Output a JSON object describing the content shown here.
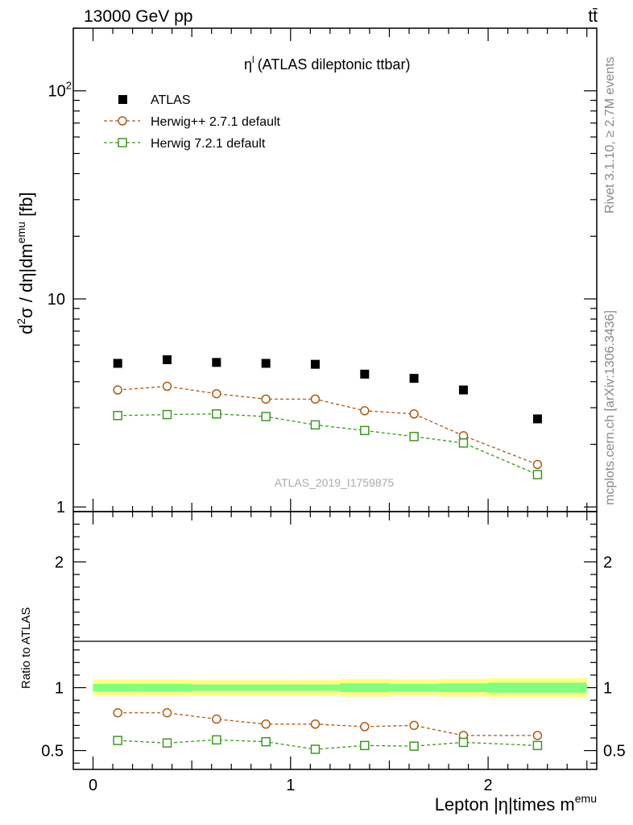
{
  "header": {
    "energy_label": "13000 GeV pp",
    "process_label": "tt̄"
  },
  "side_labels": {
    "rivet": "Rivet 3.1.10, ≥ 2.7M events",
    "mcplots": "mcplots.cern.ch [arXiv:1306.3436]"
  },
  "watermark": "ATLAS_2019_I1759875",
  "main_title": {
    "symbol": "η",
    "superscript": "l",
    "text": "(ATLAS dileptonic ttbar)"
  },
  "y_title": {
    "part1": "d",
    "part1_sup": "2",
    "part2": "σ / dη|dm",
    "part2_sup": "emu",
    "part3": " [fb]"
  },
  "ratio_ylabel": "Ratio to ATLAS",
  "x_title": {
    "text": "Lepton |η|times m",
    "sup": "emu"
  },
  "colors": {
    "atlas": "#000000",
    "herwigpp": "#b05a10",
    "herwig7": "#3a9a1e",
    "band_outer": "#ffff80",
    "band_inner": "#80ff80"
  },
  "chart_data": [
    {
      "type": "scatter",
      "yscale": "log",
      "xlim": [
        -0.1,
        2.55
      ],
      "ylim": [
        0.95,
        200
      ],
      "y_ticks": [
        {
          "value": 1,
          "label": "1"
        },
        {
          "value": 10,
          "label": "10"
        },
        {
          "value": 100,
          "label": "10",
          "sup": "2"
        }
      ],
      "legend_position": "top-left",
      "x": [
        0.125,
        0.375,
        0.625,
        0.875,
        1.125,
        1.375,
        1.625,
        1.875,
        2.25
      ],
      "series": [
        {
          "name": "ATLAS",
          "marker": "filled-square",
          "color": "#000000",
          "values": [
            4.9,
            5.1,
            4.95,
            4.9,
            4.85,
            4.35,
            4.15,
            3.65,
            2.65
          ]
        },
        {
          "name": "Herwig++ 2.7.1 default",
          "marker": "open-circle",
          "color": "#b05a10",
          "values": [
            3.65,
            3.8,
            3.5,
            3.3,
            3.3,
            2.9,
            2.8,
            2.2,
            1.6
          ]
        },
        {
          "name": "Herwig 7.2.1 default",
          "marker": "open-square",
          "color": "#3a9a1e",
          "values": [
            2.75,
            2.78,
            2.8,
            2.72,
            2.48,
            2.33,
            2.18,
            2.03,
            1.43
          ]
        }
      ]
    },
    {
      "type": "scatter",
      "ylabel": "Ratio to ATLAS",
      "xlim": [
        -0.1,
        2.55
      ],
      "ylim": [
        0.35,
        2.4
      ],
      "x_ticks": [
        {
          "value": 0,
          "label": "0"
        },
        {
          "value": 1,
          "label": "1"
        },
        {
          "value": 2,
          "label": "2"
        }
      ],
      "y_ticks": [
        {
          "value": 0.5,
          "label": "0.5"
        },
        {
          "value": 1,
          "label": "1"
        },
        {
          "value": 2,
          "label": "2"
        }
      ],
      "x": [
        0.125,
        0.375,
        0.625,
        0.875,
        1.125,
        1.375,
        1.625,
        1.875,
        2.25
      ],
      "reference_band": {
        "x_edges": [
          0,
          0.25,
          0.5,
          0.75,
          1.0,
          1.25,
          1.5,
          1.75,
          2.0,
          2.5
        ],
        "outer_half_width": [
          0.065,
          0.065,
          0.06,
          0.06,
          0.06,
          0.07,
          0.065,
          0.07,
          0.075
        ],
        "inner_half_width": [
          0.03,
          0.03,
          0.025,
          0.025,
          0.025,
          0.035,
          0.03,
          0.035,
          0.04
        ]
      },
      "series": [
        {
          "name": "Herwig++ 2.7.1 default",
          "marker": "open-circle",
          "color": "#b05a10",
          "values": [
            0.8,
            0.8,
            0.75,
            0.71,
            0.71,
            0.69,
            0.7,
            0.62,
            0.62
          ]
        },
        {
          "name": "Herwig 7.2.1 default",
          "marker": "open-square",
          "color": "#3a9a1e",
          "values": [
            0.58,
            0.56,
            0.585,
            0.57,
            0.51,
            0.54,
            0.535,
            0.565,
            0.54
          ]
        }
      ]
    }
  ]
}
